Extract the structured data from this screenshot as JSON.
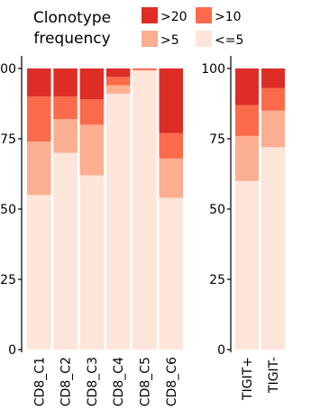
{
  "legend": {
    "title_line1": "Clonotype",
    "title_line2": "frequency",
    "entries": [
      {
        "label": ">20",
        "color": "#de2d26"
      },
      {
        "label": ">10",
        "color": "#fb6a4a"
      },
      {
        "label": ">5",
        "color": "#fcae91"
      },
      {
        "label": "<=5",
        "color": "#fee5d9"
      }
    ]
  },
  "chart_data": [
    {
      "type": "bar",
      "stacked": true,
      "categories": [
        "CD8_C1",
        "CD8_C2",
        "CD8_C3",
        "CD8_C4",
        "CD8_C5",
        "CD8_C6"
      ],
      "ylim": [
        0,
        100
      ],
      "yticks": [
        "0",
        "25",
        "50",
        "75",
        "100"
      ],
      "series": [
        {
          "name": "<=5",
          "color": "#fee5d9",
          "values": [
            55,
            70,
            62,
            91,
            99.2,
            54
          ]
        },
        {
          "name": ">5",
          "color": "#fcae91",
          "values": [
            19,
            12,
            18,
            3,
            0.3,
            14
          ]
        },
        {
          "name": ">10",
          "color": "#fb6a4a",
          "values": [
            16,
            8,
            9,
            3,
            0.3,
            9
          ]
        },
        {
          "name": ">20",
          "color": "#de2d26",
          "values": [
            10,
            10,
            11,
            3,
            0.2,
            23
          ]
        }
      ]
    },
    {
      "type": "bar",
      "stacked": true,
      "categories": [
        "TIGIT+",
        "TIGIT-"
      ],
      "ylim": [
        0,
        100
      ],
      "yticks": [
        "0",
        "25",
        "50",
        "75",
        "100"
      ],
      "series": [
        {
          "name": "<=5",
          "color": "#fee5d9",
          "values": [
            60,
            72
          ]
        },
        {
          "name": ">5",
          "color": "#fcae91",
          "values": [
            16,
            13
          ]
        },
        {
          "name": ">10",
          "color": "#fb6a4a",
          "values": [
            11,
            8
          ]
        },
        {
          "name": ">20",
          "color": "#de2d26",
          "values": [
            13,
            7
          ]
        }
      ]
    }
  ]
}
